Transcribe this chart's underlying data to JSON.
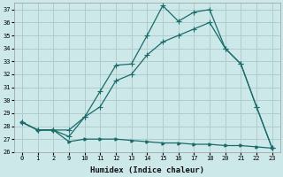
{
  "xlabel": "Humidex (Indice chaleur)",
  "bg_color": "#cce8e8",
  "grid_color": "#b0cccc",
  "line_color": "#1a6b6b",
  "ylim": [
    26,
    37.5
  ],
  "yticks": [
    26,
    27,
    28,
    29,
    30,
    31,
    32,
    33,
    34,
    35,
    36,
    37
  ],
  "hours": [
    0,
    1,
    2,
    9,
    10,
    11,
    12,
    13,
    14,
    15,
    16,
    17,
    18,
    20,
    21,
    22,
    23
  ],
  "line1_y": [
    28.3,
    27.7,
    27.7,
    27.2,
    28.7,
    30.7,
    32.7,
    32.8,
    35.0,
    37.3,
    36.1,
    36.8,
    37.0,
    34.0,
    32.8,
    29.5,
    26.3
  ],
  "line2_y": [
    28.3,
    27.7,
    27.7,
    27.7,
    28.7,
    29.5,
    31.5,
    32.0,
    33.5,
    34.5,
    35.0,
    35.5,
    36.0,
    34.0,
    32.8,
    29.5,
    26.3
  ],
  "line3_y": [
    28.3,
    27.7,
    27.7,
    26.8,
    27.0,
    27.0,
    27.0,
    26.9,
    26.8,
    26.7,
    26.7,
    26.6,
    26.6,
    26.5,
    26.5,
    26.4,
    26.3
  ]
}
